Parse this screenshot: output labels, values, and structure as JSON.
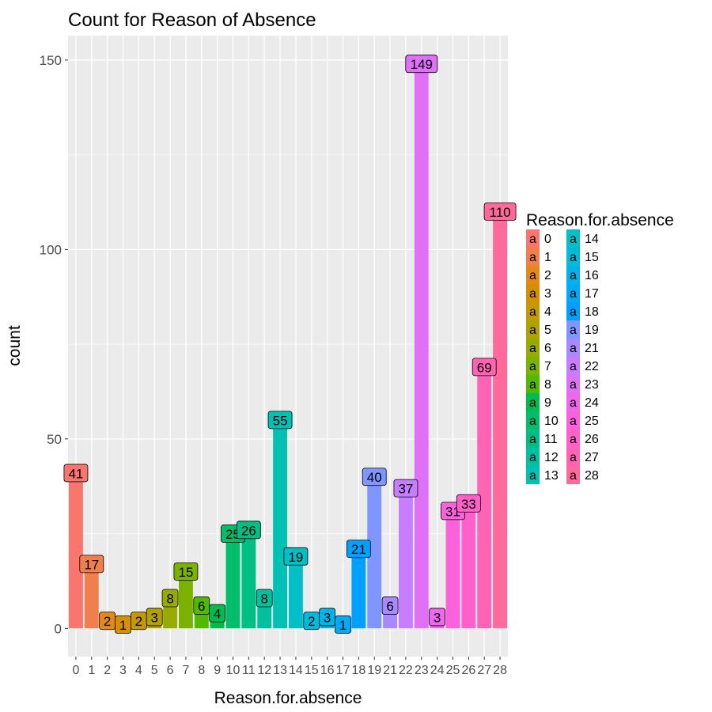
{
  "chart_data": {
    "type": "bar",
    "title": "Count for Reason of Absence",
    "xlabel": "Reason.for.absence",
    "ylabel": "count",
    "ylim": [
      -7.45,
      156.45
    ],
    "yticks": [
      0,
      50,
      100,
      150
    ],
    "grid": true,
    "categories": [
      "0",
      "1",
      "2",
      "3",
      "4",
      "5",
      "6",
      "7",
      "8",
      "9",
      "10",
      "11",
      "12",
      "13",
      "14",
      "15",
      "16",
      "17",
      "18",
      "19",
      "21",
      "22",
      "23",
      "24",
      "25",
      "26",
      "27",
      "28"
    ],
    "values": [
      41,
      17,
      2,
      1,
      2,
      3,
      8,
      15,
      6,
      4,
      25,
      26,
      8,
      55,
      19,
      2,
      3,
      1,
      21,
      40,
      6,
      37,
      149,
      3,
      31,
      33,
      69,
      110
    ],
    "colors": [
      "#F8766D",
      "#F07F4D",
      "#E4881A",
      "#D59000",
      "#C49A00",
      "#B0A300",
      "#98AB00",
      "#7BB200",
      "#53B800",
      "#00BB4E",
      "#00BE6C",
      "#00BF86",
      "#00C09D",
      "#00C1B3",
      "#00BFC7",
      "#00BAD9",
      "#00B3E9",
      "#00AAF6",
      "#00A0FF",
      "#7F96FF",
      "#A78AFF",
      "#C77DFF",
      "#DF70F8",
      "#EF67EB",
      "#FA62DB",
      "#FF61C9",
      "#FF63B4",
      "#FF699C"
    ],
    "legend": {
      "title": "Reason.for.absence",
      "key_glyph": "a",
      "position": "right"
    }
  }
}
